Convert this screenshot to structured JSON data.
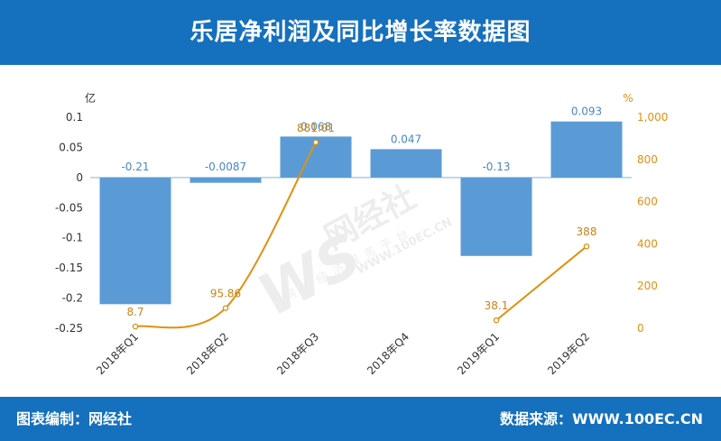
{
  "header": {
    "title": "乐居净利润及同比增长率数据图"
  },
  "footer": {
    "left_text": "图表编制：网经社",
    "right_text": "数据来源：WWW.100EC.CN"
  },
  "watermark": {
    "logo": "WS",
    "brand": "网经社",
    "url": "WWW.100EC.CN",
    "slogan": "网络经济服务平台"
  },
  "colors": {
    "header_bg": "#1570bd",
    "bar": "#5b9bd5",
    "line": "#e0900e",
    "left_tick": "#333333",
    "right_tick": "#e0900e",
    "bar_label": "#4a86c4",
    "line_label": "#c98215"
  },
  "chart_data": {
    "type": "bar",
    "categories": [
      "2018年Q1",
      "2018年Q2",
      "2018年Q3",
      "2018年Q4",
      "2019年Q1",
      "2019年Q2"
    ],
    "left_unit": "亿",
    "right_unit": "%",
    "ylim_left": [
      -0.25,
      0.1
    ],
    "yticks_left": [
      "0.1",
      "0.05",
      "0",
      "-0.05",
      "-0.1",
      "-0.15",
      "-0.2",
      "-0.25"
    ],
    "ylim_right": [
      0,
      1000
    ],
    "yticks_right": [
      "1,000",
      "800",
      "600",
      "400",
      "200",
      "0"
    ],
    "series": [
      {
        "type": "bar",
        "axis": "left",
        "values": [
          -0.21,
          -0.0087,
          0.068,
          0.047,
          -0.13,
          0.093
        ],
        "labels": [
          "-0.21",
          "-0.0087",
          "0.068",
          "0.047",
          "-0.13",
          "0.093"
        ]
      },
      {
        "type": "line",
        "axis": "right",
        "values": [
          8.7,
          95.86,
          881.01,
          null,
          38.1,
          388
        ],
        "labels": [
          "8.7",
          "95.86",
          "881.01",
          "",
          "38.1",
          "388"
        ]
      }
    ]
  }
}
